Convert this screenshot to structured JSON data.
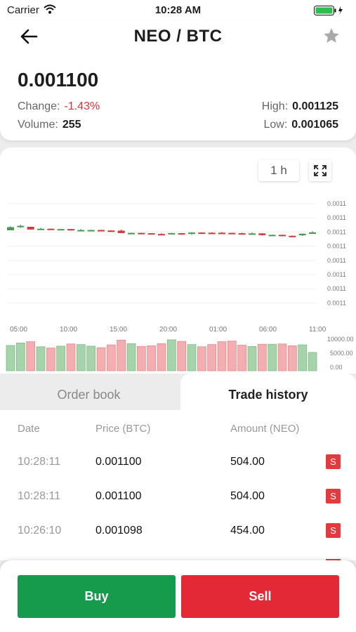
{
  "status_bar": {
    "carrier": "Carrier",
    "time": "10:28 AM"
  },
  "header": {
    "title": "NEO / BTC",
    "price": "0.001100",
    "change_label": "Change:",
    "change_value": "-1.43%",
    "volume_label": "Volume:",
    "volume_value": "255",
    "high_label": "High:",
    "high_value": "0.001125",
    "low_label": "Low:",
    "low_value": "0.001065"
  },
  "chart_controls": {
    "interval": "1 h"
  },
  "colors": {
    "up": "#4a9a55",
    "down": "#d03a3e",
    "buy": "#169a4b",
    "sell": "#e32936"
  },
  "chart_data": {
    "type": "candlestick",
    "x_ticks": [
      "05:00",
      "10:00",
      "15:00",
      "20:00",
      "01:00",
      "06:00",
      "11:00"
    ],
    "y_tick_labels": [
      "0.0011",
      "0.0011",
      "0.0011",
      "0.0011",
      "0.0011",
      "0.0011",
      "0.0011",
      "0.0011"
    ],
    "ylim": [
      0.00106,
      0.00113
    ],
    "candles": [
      {
        "o": 1.109,
        "c": 1.111,
        "h": 1.1115,
        "l": 1.109
      },
      {
        "o": 1.111,
        "c": 1.1118,
        "h": 1.1125,
        "l": 1.1105
      },
      {
        "o": 1.1112,
        "c": 1.1095,
        "h": 1.1113,
        "l": 1.1094
      },
      {
        "o": 1.1096,
        "c": 1.11,
        "h": 1.1106,
        "l": 1.1096
      },
      {
        "o": 1.11,
        "c": 1.1097,
        "h": 1.1101,
        "l": 1.1096
      },
      {
        "o": 1.1096,
        "c": 1.1098,
        "h": 1.1099,
        "l": 1.1095
      },
      {
        "o": 1.1098,
        "c": 1.109,
        "h": 1.1099,
        "l": 1.1088
      },
      {
        "o": 1.1091,
        "c": 1.1092,
        "h": 1.1098,
        "l": 1.1088
      },
      {
        "o": 1.1091,
        "c": 1.1092,
        "h": 1.1094,
        "l": 1.109
      },
      {
        "o": 1.1092,
        "c": 1.1089,
        "h": 1.1093,
        "l": 1.1088
      },
      {
        "o": 1.1089,
        "c": 1.1087,
        "h": 1.109,
        "l": 1.1086
      },
      {
        "o": 1.1088,
        "c": 1.1073,
        "h": 1.1094,
        "l": 1.1072
      },
      {
        "o": 1.1073,
        "c": 1.1074,
        "h": 1.1076,
        "l": 1.107
      },
      {
        "o": 1.1074,
        "c": 1.1071,
        "h": 1.1075,
        "l": 1.107
      },
      {
        "o": 1.1072,
        "c": 1.1066,
        "h": 1.1072,
        "l": 1.1065
      },
      {
        "o": 1.1067,
        "c": 1.1066,
        "h": 1.1072,
        "l": 1.1063
      },
      {
        "o": 1.1066,
        "c": 1.1073,
        "h": 1.1074,
        "l": 1.1064
      },
      {
        "o": 1.1072,
        "c": 1.107,
        "h": 1.1073,
        "l": 1.1063
      },
      {
        "o": 1.1068,
        "c": 1.1076,
        "h": 1.1078,
        "l": 1.1063
      },
      {
        "o": 1.1076,
        "c": 1.1074,
        "h": 1.1077,
        "l": 1.1073
      },
      {
        "o": 1.1075,
        "c": 1.1074,
        "h": 1.1077,
        "l": 1.1073
      },
      {
        "o": 1.1075,
        "c": 1.1073,
        "h": 1.1079,
        "l": 1.1072
      },
      {
        "o": 1.1074,
        "c": 1.107,
        "h": 1.1075,
        "l": 1.1069
      },
      {
        "o": 1.1072,
        "c": 1.107,
        "h": 1.1075,
        "l": 1.1068
      },
      {
        "o": 1.107,
        "c": 1.1071,
        "h": 1.1077,
        "l": 1.1069
      },
      {
        "o": 1.1071,
        "c": 1.106,
        "h": 1.1072,
        "l": 1.1057
      },
      {
        "o": 1.106,
        "c": 1.1062,
        "h": 1.1063,
        "l": 1.1055
      },
      {
        "o": 1.1062,
        "c": 1.1057,
        "h": 1.1063,
        "l": 1.1056
      },
      {
        "o": 1.1056,
        "c": 1.1055,
        "h": 1.1057,
        "l": 1.1055
      },
      {
        "o": 1.1059,
        "c": 1.1069,
        "h": 1.107,
        "l": 1.1055
      },
      {
        "o": 1.1068,
        "c": 1.1077,
        "h": 1.1084,
        "l": 1.1068
      }
    ],
    "volume_tick_labels": [
      "10000.00",
      "5000.00",
      "0.00"
    ],
    "volume": [
      8000,
      8800,
      9200,
      7600,
      7200,
      7800,
      8500,
      8300,
      7800,
      7300,
      8200,
      9700,
      8600,
      7700,
      7900,
      8600,
      9800,
      9300,
      8300,
      7600,
      8300,
      9200,
      9400,
      8100,
      7700,
      8400,
      8400,
      8500,
      7900,
      8200,
      5800
    ],
    "volume_ylim": [
      0,
      10000
    ]
  },
  "tabs": {
    "order_book": "Order book",
    "trade_history": "Trade history"
  },
  "trade_history": {
    "columns": {
      "date": "Date",
      "price": "Price (BTC)",
      "amount": "Amount (NEO)"
    },
    "rows": [
      {
        "date": "10:28:11",
        "price": "0.001100",
        "amount": "504.00",
        "side": "S"
      },
      {
        "date": "10:28:11",
        "price": "0.001100",
        "amount": "504.00",
        "side": "S"
      },
      {
        "date": "10:26:10",
        "price": "0.001098",
        "amount": "454.00",
        "side": "S"
      }
    ]
  },
  "actions": {
    "buy": "Buy",
    "sell": "Sell"
  }
}
